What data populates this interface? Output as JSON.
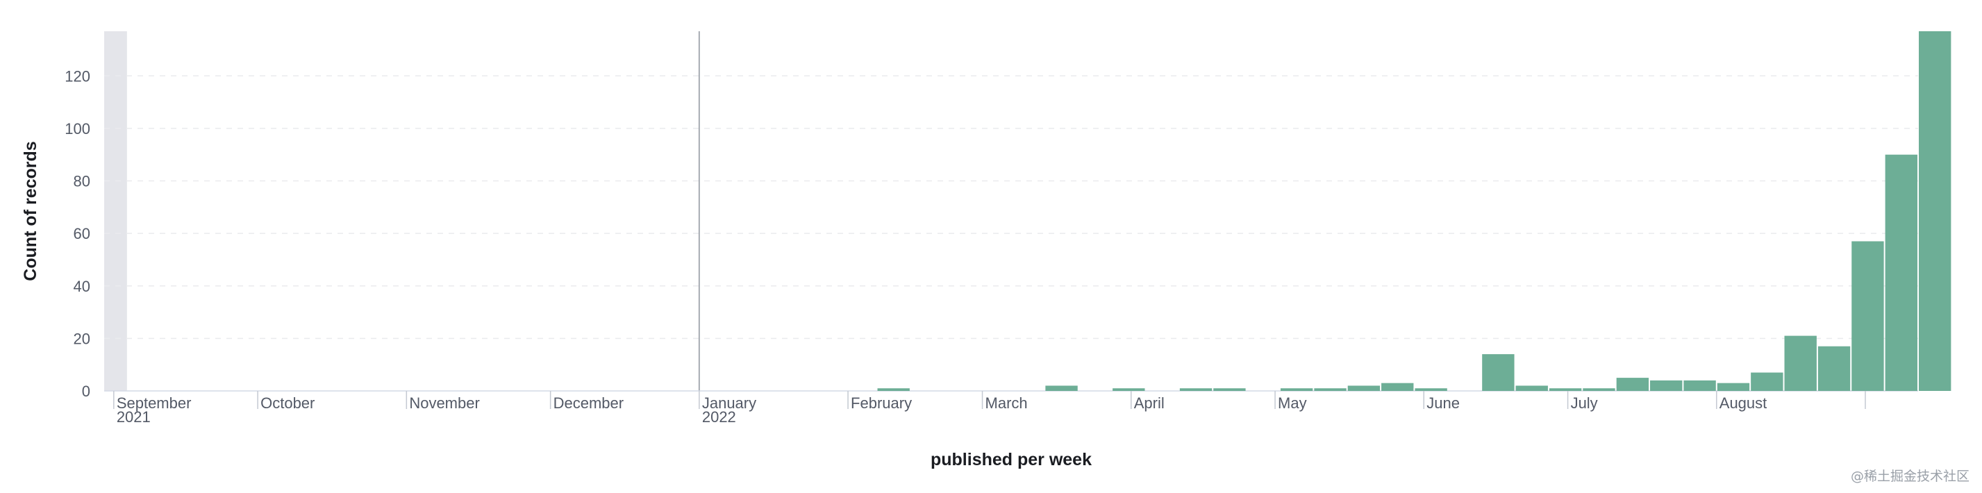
{
  "chart_data": {
    "type": "bar",
    "title": "",
    "xlabel": "published per week",
    "ylabel": "Count of records",
    "ylim": [
      0,
      137
    ],
    "y_ticks": [
      0,
      20,
      40,
      60,
      80,
      100,
      120
    ],
    "x_range": [
      "2021-08-30",
      "2022-09-12"
    ],
    "grid": {
      "horizontal": true,
      "vertical": false
    },
    "bar_color": "#6dae96",
    "month_ticks": [
      {
        "date": "2021-09-01",
        "label": "September",
        "sublabel": "2021"
      },
      {
        "date": "2021-10-01",
        "label": "October"
      },
      {
        "date": "2021-11-01",
        "label": "November"
      },
      {
        "date": "2021-12-01",
        "label": "December"
      },
      {
        "date": "2022-01-01",
        "label": "January",
        "sublabel": "2022"
      },
      {
        "date": "2022-02-01",
        "label": "February"
      },
      {
        "date": "2022-03-01",
        "label": "March"
      },
      {
        "date": "2022-04-01",
        "label": "April"
      },
      {
        "date": "2022-05-01",
        "label": "May"
      },
      {
        "date": "2022-06-01",
        "label": "June"
      },
      {
        "date": "2022-07-01",
        "label": "July"
      },
      {
        "date": "2022-08-01",
        "label": "August"
      },
      {
        "date": "2022-09-01",
        "label": ""
      }
    ],
    "x": [
      "2022-02-07",
      "2022-03-14",
      "2022-03-28",
      "2022-04-11",
      "2022-04-18",
      "2022-05-02",
      "2022-05-09",
      "2022-05-16",
      "2022-05-23",
      "2022-05-30",
      "2022-06-13",
      "2022-06-20",
      "2022-06-27",
      "2022-07-04",
      "2022-07-11",
      "2022-07-18",
      "2022-07-25",
      "2022-08-01",
      "2022-08-08",
      "2022-08-15",
      "2022-08-22",
      "2022-08-29",
      "2022-09-05"
    ],
    "values": [
      1,
      2,
      1,
      1,
      1,
      1,
      1,
      2,
      3,
      1,
      14,
      2,
      1,
      1,
      5,
      4,
      4,
      3,
      7,
      21,
      17,
      57,
      90
    ],
    "overflow_bar": {
      "x": "2022-09-05",
      "clipped_at_top": true
    }
  },
  "watermark": "@稀土掘金技术社区"
}
